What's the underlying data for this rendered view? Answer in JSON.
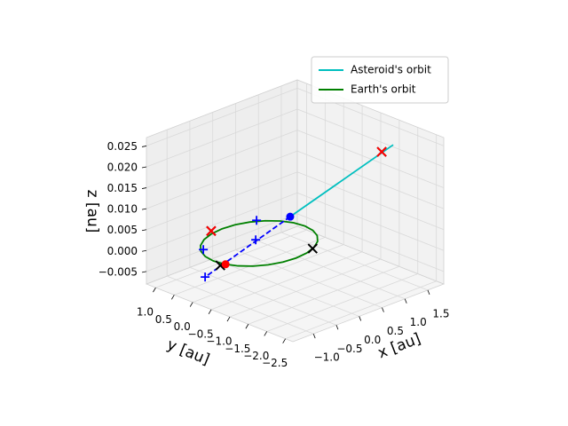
{
  "chart_data": {
    "type": "line3d",
    "xlabel": "x [au]",
    "ylabel": "y [au]",
    "zlabel": "z [au]",
    "xlim": [
      -1.45,
      1.85
    ],
    "ylim": [
      -2.7,
      1.25
    ],
    "zlim": [
      -0.008,
      0.027
    ],
    "xticks": [
      {
        "value": -1.0,
        "label": "−1.0"
      },
      {
        "value": -0.5,
        "label": "−0.5"
      },
      {
        "value": 0.0,
        "label": "0.0"
      },
      {
        "value": 0.5,
        "label": "0.5"
      },
      {
        "value": 1.0,
        "label": "1.0"
      },
      {
        "value": 1.5,
        "label": "1.5"
      }
    ],
    "yticks": [
      {
        "value": 1.0,
        "label": "1.0"
      },
      {
        "value": 0.5,
        "label": "0.5"
      },
      {
        "value": 0.0,
        "label": "0.0"
      },
      {
        "value": -0.5,
        "label": "−0.5"
      },
      {
        "value": -1.0,
        "label": "−1.0"
      },
      {
        "value": -1.5,
        "label": "−1.5"
      },
      {
        "value": -2.0,
        "label": "−2.0"
      },
      {
        "value": -2.5,
        "label": "−2.5"
      }
    ],
    "zticks": [
      {
        "value": -0.005,
        "label": "−0.005"
      },
      {
        "value": 0.0,
        "label": "0.000"
      },
      {
        "value": 0.005,
        "label": "0.005"
      },
      {
        "value": 0.01,
        "label": "0.010"
      },
      {
        "value": 0.015,
        "label": "0.015"
      },
      {
        "value": 0.02,
        "label": "0.020"
      },
      {
        "value": 0.025,
        "label": "0.025"
      }
    ],
    "grid": true,
    "legend": "upper right",
    "series": [
      {
        "name": "Earth's orbit",
        "color": "#008000",
        "x": [
          1,
          0.966,
          0.866,
          0.707,
          0.5,
          0.259,
          0,
          -0.259,
          -0.5,
          -0.707,
          -0.866,
          -0.966,
          -1,
          -0.966,
          -0.866,
          -0.707,
          -0.5,
          -0.259,
          0,
          0.259,
          0.5,
          0.707,
          0.866,
          0.966,
          1
        ],
        "y": [
          0,
          0.259,
          0.5,
          0.707,
          0.866,
          0.966,
          1,
          0.966,
          0.866,
          0.707,
          0.5,
          0.259,
          0,
          -0.259,
          -0.5,
          -0.707,
          -0.866,
          -0.966,
          -1,
          -0.966,
          -0.866,
          -0.707,
          -0.5,
          -0.259,
          0
        ],
        "z": [
          0,
          0,
          0,
          0,
          0,
          0,
          0,
          0,
          0,
          0,
          0,
          0,
          0,
          0,
          0,
          0,
          0,
          0,
          0,
          0,
          0,
          0,
          0,
          0,
          0
        ]
      },
      {
        "name": "Asteroid's orbit",
        "color": "#00bfbf",
        "x": [
          1.32,
          0.51
        ],
        "y": [
          -1.99,
          -0.21
        ],
        "z": [
          0.025,
          0.005
        ]
      },
      {
        "color": "#0000ff",
        "linestyle": "dashed",
        "x": [
          0.51,
          -1.31
        ],
        "y": [
          -0.21,
          -0.16
        ],
        "z": [
          0.005,
          -0.002
        ]
      },
      {
        "color": "#0000ff",
        "marker": "+",
        "x": [
          0.624,
          -0.792,
          0.065,
          -1.31
        ],
        "y": [
          0.837,
          0.527,
          0.171,
          -0.16
        ],
        "z": [
          0,
          0,
          0,
          -0.002
        ]
      },
      {
        "color": "#000000",
        "marker": "x",
        "x": [
          0.45,
          -1.05,
          -0.18,
          1.231
        ],
        "y": [
          -0.89,
          -0.25,
          1.07,
          -1.79
        ],
        "z": [
          0,
          0,
          0,
          0.023
        ]
      },
      {
        "color": "#ff0000",
        "marker": "x",
        "x": [
          -0.18,
          1.231
        ],
        "y": [
          1.07,
          -1.79
        ],
        "z": [
          0,
          0.023
        ]
      },
      {
        "color": "#0000ff",
        "marker": "o",
        "x": [
          0.51
        ],
        "y": [
          -0.21
        ],
        "z": [
          0.005
        ]
      },
      {
        "color": "#ff0000",
        "marker": "o",
        "x": [
          -0.96
        ],
        "y": [
          -0.28
        ],
        "z": [
          0
        ]
      }
    ]
  }
}
